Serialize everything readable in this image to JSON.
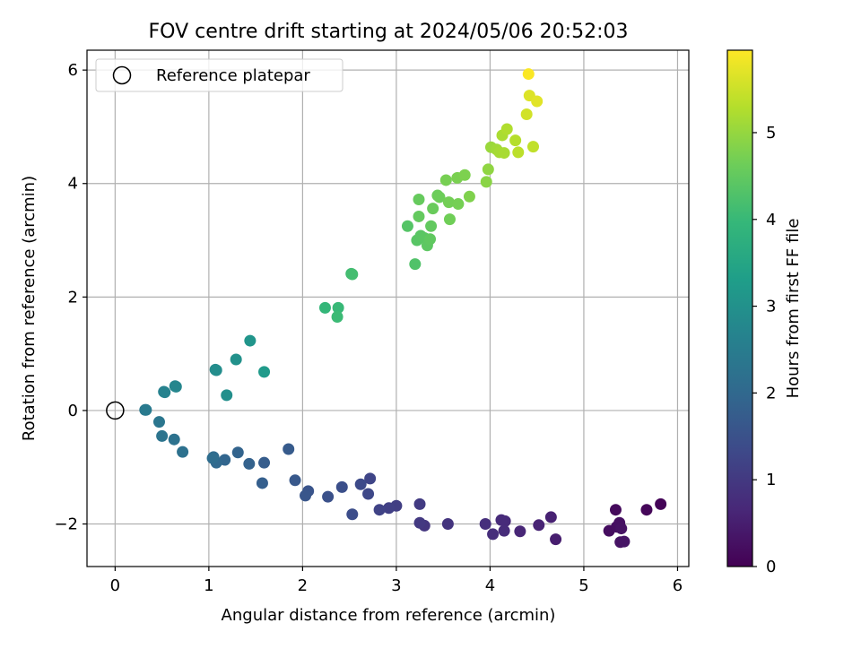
{
  "chart_data": {
    "type": "scatter",
    "title": "FOV centre drift starting at 2024/05/06 20:52:03",
    "xlabel": "Angular distance from reference (arcmin)",
    "ylabel": "Rotation from reference (arcmin)",
    "xlim": [
      -0.3,
      6.12
    ],
    "ylim": [
      -2.75,
      6.35
    ],
    "xticks": [
      0,
      1,
      2,
      3,
      4,
      5,
      6
    ],
    "yticks": [
      -2,
      0,
      2,
      4,
      6
    ],
    "xtick_labels": [
      "0",
      "1",
      "2",
      "3",
      "4",
      "5",
      "6"
    ],
    "ytick_labels": [
      "−2",
      "0",
      "2",
      "4",
      "6"
    ],
    "grid": true,
    "legend": {
      "position": "top-left",
      "label": "Reference platepar"
    },
    "reference_point": {
      "x": 0,
      "y": 0
    },
    "colorbar": {
      "label": "Hours from first FF file",
      "colormap": "viridis",
      "range": [
        0,
        5.95
      ],
      "ticks": [
        0,
        1,
        2,
        3,
        4,
        5
      ],
      "tick_labels": [
        "0",
        "1",
        "2",
        "3",
        "4",
        "5"
      ]
    },
    "points": [
      {
        "x": 5.82,
        "y": -1.65,
        "c": 0.05
      },
      {
        "x": 5.67,
        "y": -1.75,
        "c": 0.1
      },
      {
        "x": 5.34,
        "y": -1.75,
        "c": 0.15
      },
      {
        "x": 5.27,
        "y": -2.12,
        "c": 0.2
      },
      {
        "x": 5.35,
        "y": -2.05,
        "c": 0.22
      },
      {
        "x": 5.38,
        "y": -1.98,
        "c": 0.25
      },
      {
        "x": 5.4,
        "y": -2.08,
        "c": 0.28
      },
      {
        "x": 5.39,
        "y": -2.32,
        "c": 0.3
      },
      {
        "x": 5.43,
        "y": -2.31,
        "c": 0.32
      },
      {
        "x": 4.7,
        "y": -2.27,
        "c": 0.5
      },
      {
        "x": 4.65,
        "y": -1.88,
        "c": 0.55
      },
      {
        "x": 4.52,
        "y": -2.02,
        "c": 0.6
      },
      {
        "x": 4.32,
        "y": -2.13,
        "c": 0.65
      },
      {
        "x": 4.16,
        "y": -1.95,
        "c": 0.7
      },
      {
        "x": 4.12,
        "y": -1.93,
        "c": 0.72
      },
      {
        "x": 4.15,
        "y": -2.12,
        "c": 0.75
      },
      {
        "x": 4.03,
        "y": -2.18,
        "c": 0.78
      },
      {
        "x": 3.95,
        "y": -2.0,
        "c": 0.8
      },
      {
        "x": 3.55,
        "y": -2.0,
        "c": 0.9
      },
      {
        "x": 3.3,
        "y": -2.03,
        "c": 0.95
      },
      {
        "x": 3.25,
        "y": -1.98,
        "c": 1.0
      },
      {
        "x": 3.25,
        "y": -1.65,
        "c": 1.05
      },
      {
        "x": 3.0,
        "y": -1.68,
        "c": 1.1
      },
      {
        "x": 2.92,
        "y": -1.72,
        "c": 1.15
      },
      {
        "x": 2.82,
        "y": -1.75,
        "c": 1.2
      },
      {
        "x": 2.72,
        "y": -1.2,
        "c": 1.25
      },
      {
        "x": 2.7,
        "y": -1.47,
        "c": 1.3
      },
      {
        "x": 2.62,
        "y": -1.3,
        "c": 1.35
      },
      {
        "x": 2.53,
        "y": -1.83,
        "c": 1.4
      },
      {
        "x": 2.42,
        "y": -1.35,
        "c": 1.45
      },
      {
        "x": 2.27,
        "y": -1.52,
        "c": 1.5
      },
      {
        "x": 2.06,
        "y": -1.42,
        "c": 1.55
      },
      {
        "x": 2.03,
        "y": -1.5,
        "c": 1.6
      },
      {
        "x": 1.92,
        "y": -1.23,
        "c": 1.65
      },
      {
        "x": 1.85,
        "y": -0.68,
        "c": 1.7
      },
      {
        "x": 1.59,
        "y": -0.92,
        "c": 1.75
      },
      {
        "x": 1.57,
        "y": -1.28,
        "c": 1.8
      },
      {
        "x": 1.43,
        "y": -0.94,
        "c": 1.85
      },
      {
        "x": 1.31,
        "y": -0.74,
        "c": 1.9
      },
      {
        "x": 1.17,
        "y": -0.87,
        "c": 1.95
      },
      {
        "x": 1.08,
        "y": -0.92,
        "c": 2.0
      },
      {
        "x": 1.05,
        "y": -0.82,
        "c": 2.05
      },
      {
        "x": 1.04,
        "y": -0.84,
        "c": 2.1
      },
      {
        "x": 0.72,
        "y": -0.73,
        "c": 2.2
      },
      {
        "x": 0.63,
        "y": -0.51,
        "c": 2.25
      },
      {
        "x": 0.5,
        "y": -0.45,
        "c": 2.3
      },
      {
        "x": 0.47,
        "y": -0.2,
        "c": 2.35
      },
      {
        "x": 0.32,
        "y": 0.01,
        "c": 2.4
      },
      {
        "x": 0.33,
        "y": 0.01,
        "c": 2.45
      },
      {
        "x": 0.52,
        "y": 0.33,
        "c": 2.6
      },
      {
        "x": 0.53,
        "y": 0.32,
        "c": 2.65
      },
      {
        "x": 0.64,
        "y": 0.43,
        "c": 2.7
      },
      {
        "x": 0.65,
        "y": 0.42,
        "c": 2.75
      },
      {
        "x": 1.07,
        "y": 0.72,
        "c": 2.85
      },
      {
        "x": 1.08,
        "y": 0.71,
        "c": 2.9
      },
      {
        "x": 1.19,
        "y": 0.27,
        "c": 2.95
      },
      {
        "x": 1.29,
        "y": 0.9,
        "c": 3.0
      },
      {
        "x": 1.44,
        "y": 1.23,
        "c": 3.1
      },
      {
        "x": 1.59,
        "y": 0.68,
        "c": 3.2
      },
      {
        "x": 2.24,
        "y": 1.81,
        "c": 3.95
      },
      {
        "x": 2.38,
        "y": 1.81,
        "c": 4.0
      },
      {
        "x": 2.37,
        "y": 1.65,
        "c": 4.05
      },
      {
        "x": 2.52,
        "y": 2.41,
        "c": 4.1
      },
      {
        "x": 2.53,
        "y": 2.4,
        "c": 4.15
      },
      {
        "x": 3.2,
        "y": 2.58,
        "c": 4.3
      },
      {
        "x": 3.12,
        "y": 3.25,
        "c": 4.35
      },
      {
        "x": 3.22,
        "y": 3.0,
        "c": 4.38
      },
      {
        "x": 3.26,
        "y": 3.08,
        "c": 4.4
      },
      {
        "x": 3.3,
        "y": 3.04,
        "c": 4.42
      },
      {
        "x": 3.33,
        "y": 2.91,
        "c": 4.45
      },
      {
        "x": 3.36,
        "y": 3.02,
        "c": 4.48
      },
      {
        "x": 3.37,
        "y": 3.25,
        "c": 4.5
      },
      {
        "x": 3.24,
        "y": 3.42,
        "c": 4.52
      },
      {
        "x": 3.24,
        "y": 3.72,
        "c": 4.55
      },
      {
        "x": 3.39,
        "y": 3.56,
        "c": 4.58
      },
      {
        "x": 3.44,
        "y": 3.79,
        "c": 4.6
      },
      {
        "x": 3.46,
        "y": 3.76,
        "c": 4.62
      },
      {
        "x": 3.57,
        "y": 3.37,
        "c": 4.65
      },
      {
        "x": 3.56,
        "y": 3.67,
        "c": 4.68
      },
      {
        "x": 3.66,
        "y": 3.64,
        "c": 4.7
      },
      {
        "x": 3.53,
        "y": 4.06,
        "c": 4.72
      },
      {
        "x": 3.65,
        "y": 4.1,
        "c": 4.75
      },
      {
        "x": 3.73,
        "y": 4.15,
        "c": 4.78
      },
      {
        "x": 3.78,
        "y": 3.77,
        "c": 4.8
      },
      {
        "x": 3.96,
        "y": 4.03,
        "c": 4.9
      },
      {
        "x": 3.98,
        "y": 4.25,
        "c": 4.95
      },
      {
        "x": 4.01,
        "y": 4.64,
        "c": 5.05
      },
      {
        "x": 4.07,
        "y": 4.6,
        "c": 5.1
      },
      {
        "x": 4.1,
        "y": 4.55,
        "c": 5.15
      },
      {
        "x": 4.15,
        "y": 4.54,
        "c": 5.18
      },
      {
        "x": 4.13,
        "y": 4.85,
        "c": 5.2
      },
      {
        "x": 4.18,
        "y": 4.96,
        "c": 5.25
      },
      {
        "x": 4.27,
        "y": 4.76,
        "c": 5.3
      },
      {
        "x": 4.3,
        "y": 4.55,
        "c": 5.35
      },
      {
        "x": 4.46,
        "y": 4.65,
        "c": 5.4
      },
      {
        "x": 4.39,
        "y": 5.22,
        "c": 5.55
      },
      {
        "x": 4.42,
        "y": 5.55,
        "c": 5.65
      },
      {
        "x": 4.5,
        "y": 5.45,
        "c": 5.7
      },
      {
        "x": 4.41,
        "y": 5.93,
        "c": 5.92
      }
    ]
  }
}
